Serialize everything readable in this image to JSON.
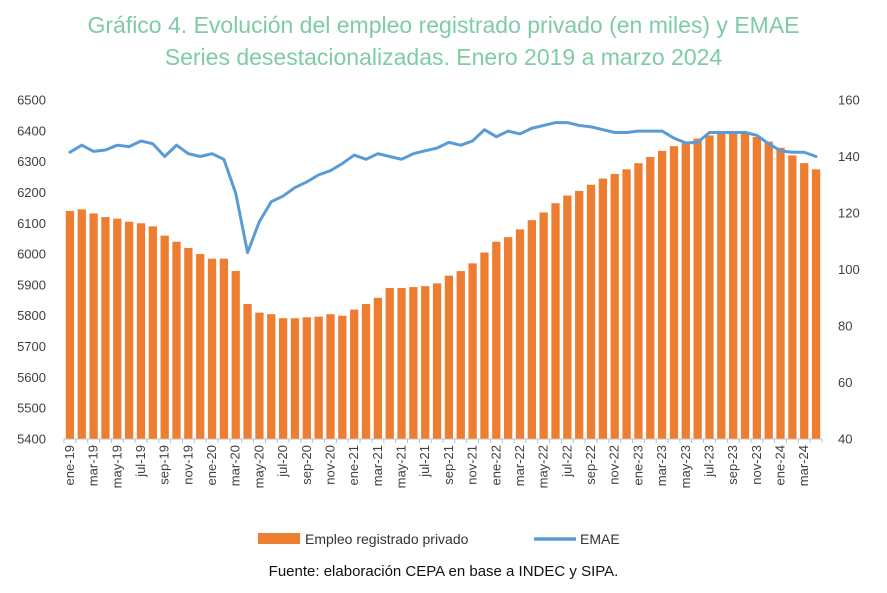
{
  "colors": {
    "title": "#7fcba4",
    "bar": "#ed7d31",
    "line": "#5b9bd5"
  },
  "chart_data": {
    "type": "bar+line",
    "title": "Gráfico 4. Evolución del empleo registrado privado (en miles) y EMAE",
    "subtitle": "Series desestacionalizadas. Enero 2019 a marzo 2024",
    "source": "Fuente: elaboración CEPA en base a INDEC y SIPA.",
    "legend_position": "bottom",
    "grid": false,
    "y_left": {
      "range": [
        5400,
        6500
      ],
      "ticks": [
        5400,
        5500,
        5600,
        5700,
        5800,
        5900,
        6000,
        6100,
        6200,
        6300,
        6400,
        6500
      ]
    },
    "y_right": {
      "range": [
        40,
        160
      ],
      "ticks": [
        40,
        60,
        80,
        100,
        120,
        140,
        160
      ]
    },
    "x_tick_labels": [
      "ene-19",
      "mar-19",
      "may-19",
      "jul-19",
      "sep-19",
      "nov-19",
      "ene-20",
      "mar-20",
      "may-20",
      "jul-20",
      "sep-20",
      "nov-20",
      "ene-21",
      "mar-21",
      "may-21",
      "jul-21",
      "sep-21",
      "nov-21",
      "ene-22",
      "mar-22",
      "may-22",
      "jul-22",
      "sep-22",
      "nov-22",
      "ene-23",
      "mar-23",
      "may-23",
      "jul-23",
      "sep-23",
      "nov-23",
      "ene-24",
      "mar-24"
    ],
    "series": [
      {
        "name": "Empleo registrado privado",
        "type": "bar",
        "axis": "left",
        "values": [
          6140,
          6145,
          6132,
          6120,
          6115,
          6105,
          6100,
          6090,
          6060,
          6040,
          6020,
          6000,
          5985,
          5985,
          5945,
          5838,
          5810,
          5805,
          5792,
          5792,
          5795,
          5797,
          5805,
          5800,
          5820,
          5838,
          5858,
          5890,
          5890,
          5893,
          5896,
          5905,
          5930,
          5945,
          5970,
          6005,
          6040,
          6055,
          6080,
          6110,
          6135,
          6165,
          6190,
          6205,
          6225,
          6245,
          6260,
          6275,
          6295,
          6315,
          6335,
          6350,
          6360,
          6375,
          6385,
          6390,
          6395,
          6390,
          6380,
          6365,
          6345,
          6320,
          6295,
          6275
        ]
      },
      {
        "name": "EMAE",
        "type": "line",
        "axis": "right",
        "values": [
          141.5,
          144,
          141.8,
          142.3,
          144,
          143.5,
          145.5,
          144.5,
          140,
          144,
          141,
          140,
          141,
          139,
          127,
          106,
          117,
          124,
          126,
          129,
          131,
          133.5,
          135,
          137.5,
          140.5,
          139,
          141,
          140,
          139,
          141,
          142,
          143,
          145,
          144,
          145.5,
          149.5,
          147,
          149,
          148,
          150,
          151,
          152,
          152,
          151,
          150.5,
          149.5,
          148.5,
          148.5,
          149,
          149,
          149,
          146.5,
          144.8,
          145,
          148.5,
          148.5,
          148.5,
          148.5,
          147.5,
          144.5,
          142,
          141.5,
          141.5,
          140
        ]
      }
    ]
  }
}
